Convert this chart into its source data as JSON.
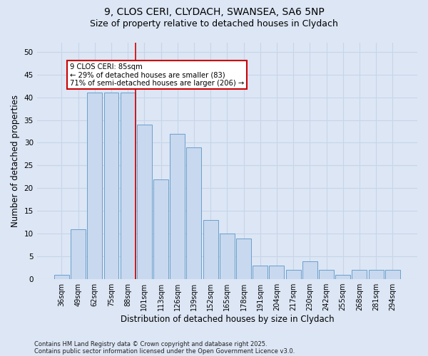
{
  "title1": "9, CLOS CERI, CLYDACH, SWANSEA, SA6 5NP",
  "title2": "Size of property relative to detached houses in Clydach",
  "xlabel": "Distribution of detached houses by size in Clydach",
  "ylabel": "Number of detached properties",
  "categories": [
    "36sqm",
    "49sqm",
    "62sqm",
    "75sqm",
    "88sqm",
    "101sqm",
    "113sqm",
    "126sqm",
    "139sqm",
    "152sqm",
    "165sqm",
    "178sqm",
    "191sqm",
    "204sqm",
    "217sqm",
    "230sqm",
    "242sqm",
    "255sqm",
    "268sqm",
    "281sqm",
    "294sqm"
  ],
  "values": [
    1,
    11,
    41,
    41,
    41,
    34,
    22,
    32,
    29,
    13,
    10,
    9,
    3,
    3,
    2,
    4,
    2,
    1,
    2,
    2,
    2
  ],
  "bar_color": "#c8d8ee",
  "bar_edge_color": "#6aa0cc",
  "vline_index": 4,
  "annotation_text_line1": "9 CLOS CERI: 85sqm",
  "annotation_text_line2": "← 29% of detached houses are smaller (83)",
  "annotation_text_line3": "71% of semi-detached houses are larger (206) →",
  "annotation_box_color": "#ffffff",
  "annotation_box_edge_color": "#cc0000",
  "vline_color": "#cc0000",
  "grid_color": "#c8d4e8",
  "background_color": "#dce6f5",
  "footer1": "Contains HM Land Registry data © Crown copyright and database right 2025.",
  "footer2": "Contains public sector information licensed under the Open Government Licence v3.0.",
  "ylim": [
    0,
    52
  ],
  "yticks": [
    0,
    5,
    10,
    15,
    20,
    25,
    30,
    35,
    40,
    45,
    50
  ],
  "title_fontsize": 10,
  "subtitle_fontsize": 9,
  "tick_fontsize": 7,
  "label_fontsize": 8.5,
  "footer_fontsize": 6
}
